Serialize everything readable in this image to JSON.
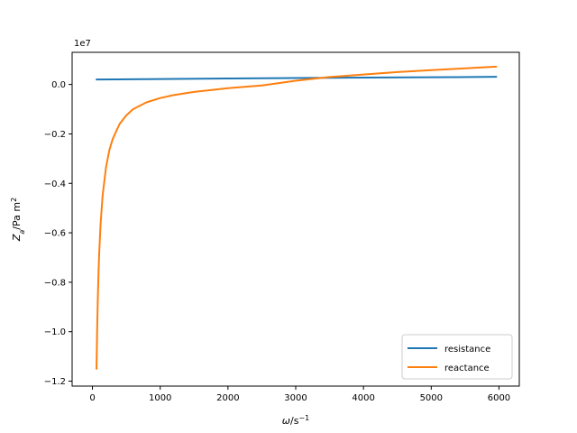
{
  "chart_data": {
    "type": "line",
    "title": "",
    "xlabel": "ω/s⁻¹",
    "ylabel": "Z_a/Pa m²",
    "y_offset_label": "1e7",
    "xlim": [
      -300,
      6300
    ],
    "ylim": [
      -1.22,
      0.13
    ],
    "x_ticks": [
      0,
      1000,
      2000,
      3000,
      4000,
      5000,
      6000
    ],
    "x_tick_labels": [
      "0",
      "1000",
      "2000",
      "3000",
      "4000",
      "5000",
      "6000"
    ],
    "y_ticks": [
      0.0,
      -0.2,
      -0.4,
      -0.6,
      -0.8,
      -1.0,
      -1.2
    ],
    "y_tick_labels": [
      "0.0",
      "−0.2",
      "−0.4",
      "−0.6",
      "−0.8",
      "−1.0",
      "−1.2"
    ],
    "grid": false,
    "legend_position": "lower-right",
    "series": [
      {
        "name": "resistance",
        "color": "#1f77b4",
        "x": [
          60,
          1000,
          2000,
          3000,
          4000,
          5000,
          5960
        ],
        "y": [
          0.02,
          0.022,
          0.024,
          0.026,
          0.028,
          0.029,
          0.031
        ]
      },
      {
        "name": "reactance",
        "color": "#ff7f0e",
        "x": [
          60,
          70,
          80,
          90,
          100,
          120,
          150,
          200,
          250,
          300,
          400,
          500,
          600,
          800,
          1000,
          1200,
          1500,
          2000,
          2500,
          3000,
          3500,
          4000,
          4500,
          5000,
          5500,
          5960
        ],
        "y": [
          -1.15,
          -0.98,
          -0.86,
          -0.76,
          -0.68,
          -0.565,
          -0.45,
          -0.335,
          -0.265,
          -0.22,
          -0.16,
          -0.125,
          -0.1,
          -0.072,
          -0.055,
          -0.043,
          -0.03,
          -0.015,
          -0.004,
          0.015,
          0.03,
          0.04,
          0.05,
          0.058,
          0.065,
          0.072
        ]
      }
    ]
  }
}
